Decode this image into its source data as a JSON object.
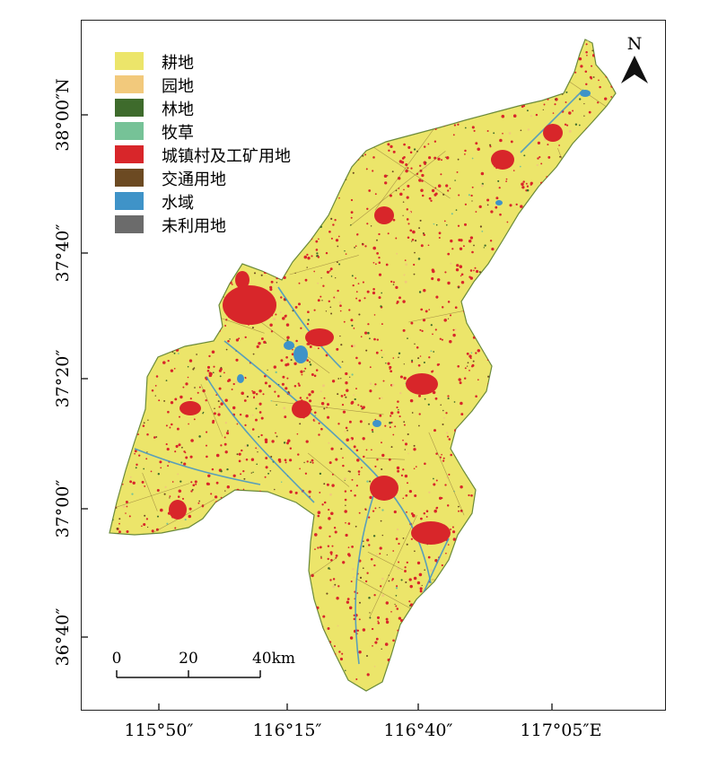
{
  "legend": {
    "items": [
      {
        "label": "耕地",
        "color": "#ece56a"
      },
      {
        "label": "园地",
        "color": "#f2c97c"
      },
      {
        "label": "林地",
        "color": "#3e6b2c"
      },
      {
        "label": "牧草",
        "color": "#76c297"
      },
      {
        "label": "城镇村及工矿用地",
        "color": "#d8262a"
      },
      {
        "label": "交通用地",
        "color": "#6c4a22"
      },
      {
        "label": "水域",
        "color": "#3f93c8"
      },
      {
        "label": "未利用地",
        "color": "#6b6b6b"
      }
    ]
  },
  "axes": {
    "longitude_ticks": [
      "115°50″",
      "116°15″",
      "116°40″",
      "117°05″E"
    ],
    "latitude_ticks": [
      "38°00″N",
      "37°40″",
      "37°20″",
      "37°00″",
      "36°40″"
    ]
  },
  "north_arrow": {
    "label": "N",
    "icon": "north-arrow-icon"
  },
  "scale_bar": {
    "labels": [
      "0",
      "20",
      "40km"
    ]
  },
  "colors": {
    "cropland": "#ece56a",
    "urban": "#d8262a",
    "water": "#3f93c8",
    "forest": "#3e6b2c",
    "frame": "#222222"
  }
}
